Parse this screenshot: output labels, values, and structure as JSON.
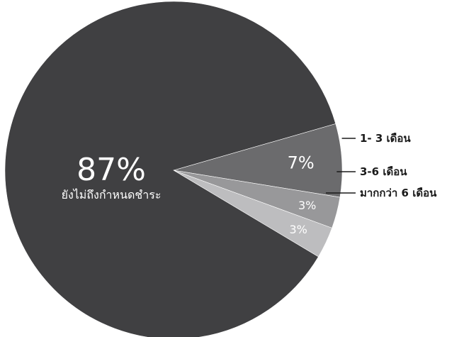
{
  "chart_data": {
    "type": "pie",
    "slices": [
      {
        "label": "1- 3 เดือน",
        "value": 7,
        "value_label": "7%",
        "color": "#6b6b6d"
      },
      {
        "label": "3-6 เดือน",
        "value": 3,
        "value_label": "3%",
        "color": "#98989a"
      },
      {
        "label": "มากกว่า 6 เดือน",
        "value": 3,
        "value_label": "3%",
        "color": "#bdbdbf"
      },
      {
        "label": "ยังไม่ถึงกำหนดชำระ",
        "value": 87,
        "value_label": "87%",
        "color": "#404042"
      }
    ],
    "legend": "none"
  }
}
